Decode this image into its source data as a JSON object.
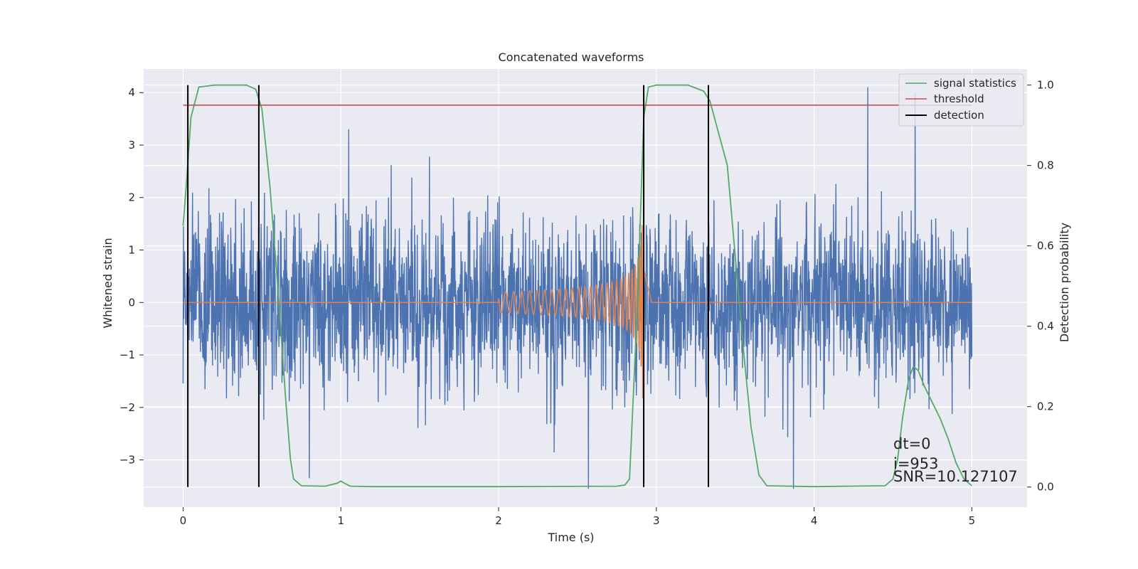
{
  "chart_data": {
    "type": "line",
    "title": "Concatenated waveforms",
    "xlabel": "Time (s)",
    "ylabel_left": "Whitened strain",
    "ylabel_right": "Detection probability",
    "xlim": [
      -0.25,
      5.35
    ],
    "ylim_left": [
      -3.9,
      4.45
    ],
    "ylim_right": [
      -0.05,
      1.04
    ],
    "x_ticks": [
      0,
      1,
      2,
      3,
      4,
      5
    ],
    "y_left_ticks": [
      -3,
      -2,
      -1,
      0,
      1,
      2,
      3,
      4
    ],
    "y_right_ticks": [
      0.0,
      0.2,
      0.4,
      0.6,
      0.8,
      1.0
    ],
    "grid": true,
    "legend_position": "top-right",
    "colors": {
      "background": "#eaeaf2",
      "grid": "#ffffff",
      "strain": "#4c72b0",
      "template": "#dd8452",
      "signal_statistics": "#55a868",
      "threshold": "#c44e52",
      "detection": "#000000"
    },
    "series": [
      {
        "name": "strain",
        "description_axis": "left",
        "x_range": [
          0,
          5
        ],
        "noise_std": 0.8,
        "peaks": [
          {
            "x": 0.8,
            "y": -3.35
          },
          {
            "x": 1.05,
            "y": 3.3
          },
          {
            "x": 2.57,
            "y": -3.55
          },
          {
            "x": 3.87,
            "y": -3.55
          },
          {
            "x": 4.34,
            "y": 4.1
          },
          {
            "x": 4.64,
            "y": 4.0
          }
        ]
      },
      {
        "name": "template",
        "description_axis": "left",
        "x_range": [
          0,
          5
        ],
        "chirp_start": 2.0,
        "chirp_end": 2.92,
        "amplitude_start": 0.2,
        "amplitude_end": 1.9
      },
      {
        "name": "signal statistics",
        "axis": "right",
        "x": [
          0,
          0.02,
          0.05,
          0.1,
          0.2,
          0.4,
          0.46,
          0.5,
          0.55,
          0.6,
          0.65,
          0.68,
          0.7,
          0.75,
          0.9,
          0.98,
          1.0,
          1.02,
          1.06,
          1.2,
          2.0,
          2.75,
          2.8,
          2.83,
          2.88,
          2.92,
          2.95,
          3.0,
          3.2,
          3.3,
          3.34,
          3.45,
          3.55,
          3.6,
          3.65,
          3.7,
          4.0,
          4.45,
          4.5,
          4.53,
          4.56,
          4.6,
          4.63,
          4.66,
          4.7,
          4.75,
          4.8,
          4.85,
          4.9,
          4.95,
          5.0
        ],
        "y": [
          0.65,
          0.75,
          0.92,
          0.995,
          1.0,
          1.0,
          0.99,
          0.94,
          0.75,
          0.5,
          0.22,
          0.07,
          0.02,
          0.003,
          0.002,
          0.01,
          0.015,
          0.01,
          0.002,
          0.001,
          0.001,
          0.002,
          0.005,
          0.02,
          0.45,
          0.92,
          0.995,
          1.0,
          1.0,
          0.985,
          0.96,
          0.8,
          0.35,
          0.15,
          0.03,
          0.003,
          0.001,
          0.003,
          0.02,
          0.07,
          0.17,
          0.27,
          0.3,
          0.29,
          0.25,
          0.21,
          0.17,
          0.12,
          0.06,
          0.02,
          0.003
        ]
      },
      {
        "name": "threshold",
        "axis": "right",
        "x": [
          0,
          5
        ],
        "y": [
          0.95,
          0.95
        ]
      },
      {
        "name": "detection",
        "axis": "right",
        "x_positions": [
          0.03,
          0.48,
          2.92,
          3.33
        ],
        "y_range": [
          0.0,
          1.0
        ]
      }
    ],
    "legend": [
      "signal statistics",
      "threshold",
      "detection"
    ],
    "annotations": [
      "dt=0",
      "i=953",
      "SNR=10.127107"
    ]
  }
}
